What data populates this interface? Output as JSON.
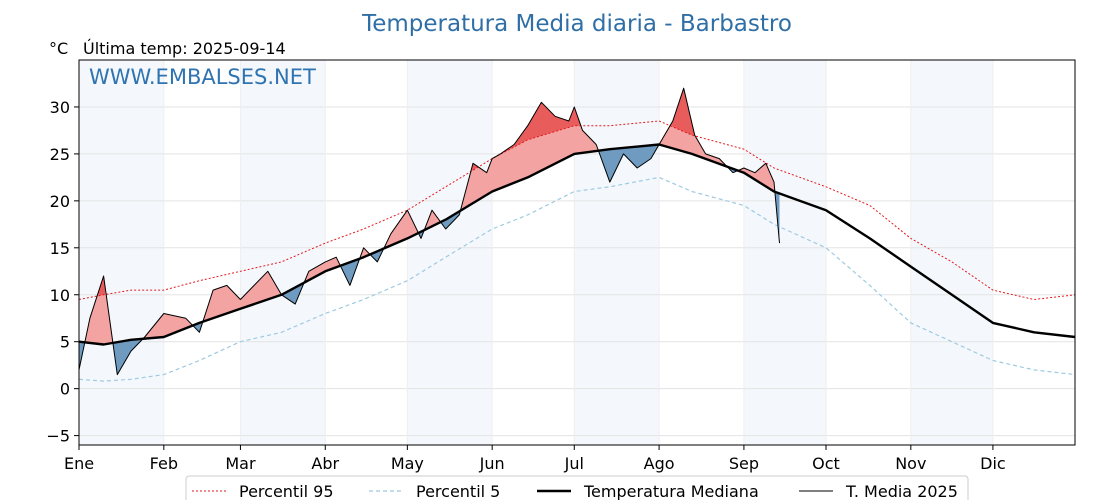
{
  "chart_data": {
    "type": "line",
    "title": "Temperatura Media diaria - Barbastro",
    "unit": "°C",
    "last_update": "Última temp: 2025-09-14",
    "watermark": "WWW.EMBALSES.NET",
    "x_unit": "day of year",
    "xlim": [
      1,
      365
    ],
    "ylim": [
      -6,
      35
    ],
    "yticks": [
      -5,
      0,
      5,
      10,
      15,
      20,
      25,
      30
    ],
    "ytick_labels": [
      "−5",
      "0",
      "5",
      "10",
      "15",
      "20",
      "25",
      "30"
    ],
    "months": [
      {
        "label": "Ene",
        "day": 1
      },
      {
        "label": "Feb",
        "day": 32
      },
      {
        "label": "Mar",
        "day": 60
      },
      {
        "label": "Abr",
        "day": 91
      },
      {
        "label": "May",
        "day": 121
      },
      {
        "label": "Jun",
        "day": 152
      },
      {
        "label": "Jul",
        "day": 182
      },
      {
        "label": "Ago",
        "day": 213
      },
      {
        "label": "Sep",
        "day": 244
      },
      {
        "label": "Oct",
        "day": 274
      },
      {
        "label": "Nov",
        "day": 305
      },
      {
        "label": "Dic",
        "day": 335
      }
    ],
    "grid": true,
    "legend_position": "bottom",
    "colors": {
      "p95": "#e31a1c",
      "p5": "#9ecae1",
      "median": "#000000",
      "current": "#000000",
      "above_fill": "#f4a3a3",
      "above_fill_strong": "#e85c5c",
      "below_fill": "#6f9bc1",
      "band": "#dce9f6"
    },
    "series": [
      {
        "name": "Percentil 95",
        "key": "p95",
        "style": "dotted",
        "x": [
          1,
          10,
          20,
          32,
          45,
          60,
          75,
          91,
          105,
          121,
          135,
          152,
          165,
          182,
          195,
          213,
          225,
          244,
          255,
          274,
          290,
          305,
          320,
          335,
          350,
          365
        ],
        "y": [
          9.5,
          10,
          10.5,
          10.5,
          11.5,
          12.5,
          13.5,
          15.5,
          17,
          19,
          21.5,
          24.5,
          26.5,
          28,
          28,
          28.5,
          27,
          25.5,
          23.5,
          21.5,
          19.5,
          16,
          13.5,
          10.5,
          9.5,
          10
        ]
      },
      {
        "name": "Percentil 5",
        "key": "p5",
        "style": "dashed",
        "x": [
          1,
          10,
          20,
          32,
          45,
          60,
          75,
          91,
          105,
          121,
          135,
          152,
          165,
          182,
          195,
          213,
          225,
          244,
          255,
          274,
          290,
          305,
          320,
          335,
          350,
          365
        ],
        "y": [
          1,
          0.8,
          1,
          1.5,
          3,
          5,
          6,
          8,
          9.5,
          11.5,
          14,
          17,
          18.5,
          21,
          21.5,
          22.5,
          21,
          19.5,
          17.5,
          15,
          11,
          7,
          5,
          3,
          2,
          1.5
        ]
      },
      {
        "name": "Temperatura Mediana",
        "key": "median",
        "style": "solid-thick",
        "x": [
          1,
          10,
          20,
          32,
          45,
          60,
          75,
          91,
          105,
          121,
          135,
          152,
          165,
          182,
          195,
          213,
          225,
          244,
          255,
          274,
          290,
          305,
          320,
          335,
          350,
          365
        ],
        "y": [
          5,
          4.7,
          5.2,
          5.5,
          7,
          8.5,
          10,
          12.5,
          14,
          16,
          18,
          21,
          22.5,
          25,
          25.5,
          26,
          25,
          23,
          21,
          19,
          16,
          13,
          10,
          7,
          6,
          5.5
        ]
      },
      {
        "name": "T. Media 2025",
        "key": "current",
        "style": "solid",
        "x": [
          1,
          5,
          10,
          15,
          20,
          25,
          32,
          40,
          45,
          50,
          55,
          60,
          65,
          70,
          75,
          80,
          85,
          91,
          95,
          100,
          105,
          110,
          115,
          121,
          126,
          130,
          135,
          140,
          145,
          150,
          152,
          155,
          160,
          165,
          170,
          175,
          180,
          182,
          185,
          190,
          195,
          200,
          205,
          210,
          213,
          218,
          222,
          226,
          230,
          235,
          240,
          244,
          248,
          252,
          255,
          257
        ],
        "y": [
          2,
          7.5,
          12,
          1.5,
          4,
          5.5,
          8,
          7.5,
          6,
          10.5,
          11,
          9.5,
          11,
          12.5,
          10,
          9,
          12.5,
          13.5,
          14,
          11,
          15,
          13.5,
          16.5,
          19,
          16,
          19,
          17,
          18.5,
          24,
          23,
          24.5,
          25,
          26,
          28,
          30.5,
          29,
          28.5,
          30,
          27.5,
          26,
          22,
          25,
          23.5,
          24.5,
          26,
          28.5,
          32,
          27,
          25,
          24.5,
          23,
          23.5,
          23,
          24,
          22,
          15.5
        ]
      }
    ]
  },
  "legend": {
    "items": [
      {
        "key": "p95",
        "label": "Percentil 95"
      },
      {
        "key": "p5",
        "label": "Percentil 5"
      },
      {
        "key": "median",
        "label": "Temperatura Mediana"
      },
      {
        "key": "current",
        "label": "T. Media 2025"
      }
    ]
  }
}
